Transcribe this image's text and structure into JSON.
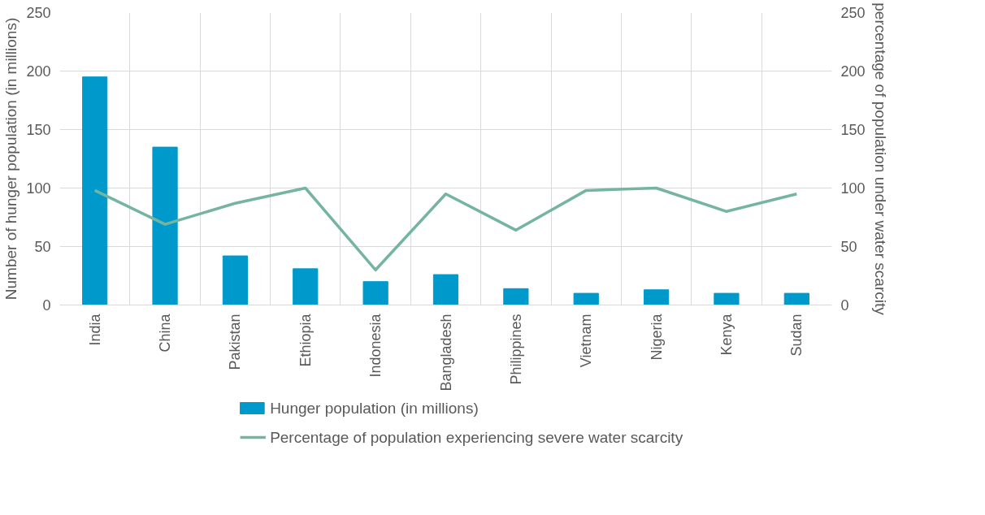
{
  "chart_data": {
    "type": "bar",
    "categories": [
      "India",
      "China",
      "Pakistan",
      "Ethiopia",
      "Indonesia",
      "Bangladesh",
      "Philippines",
      "Vietnam",
      "Nigeria",
      "Kenya",
      "Sudan"
    ],
    "ylabel": "Number of hunger population (in millions)",
    "y2label": "percentage of population under water scarcity",
    "series": [
      {
        "name": "Hunger population (in millions)",
        "color": "#0099cc",
        "values": [
          195,
          135,
          42,
          31,
          20,
          26,
          14,
          10,
          13,
          10,
          10
        ]
      },
      {
        "name": "Percentage of population experiencing severe water scarcity",
        "type": "line",
        "axis": "y2",
        "color": "#74b4a0",
        "values": [
          98,
          69,
          87,
          100,
          30,
          95,
          64,
          98,
          100,
          80,
          95
        ]
      }
    ],
    "ylim": [
      0,
      250
    ],
    "yticks": [
      0,
      50,
      100,
      150,
      200,
      250
    ],
    "y2lim": [
      0,
      250
    ],
    "y2ticks": [
      0,
      50,
      100,
      150,
      200,
      250
    ],
    "grid": true,
    "legend": "bottom",
    "marker": "none",
    "line_style": "solid"
  }
}
